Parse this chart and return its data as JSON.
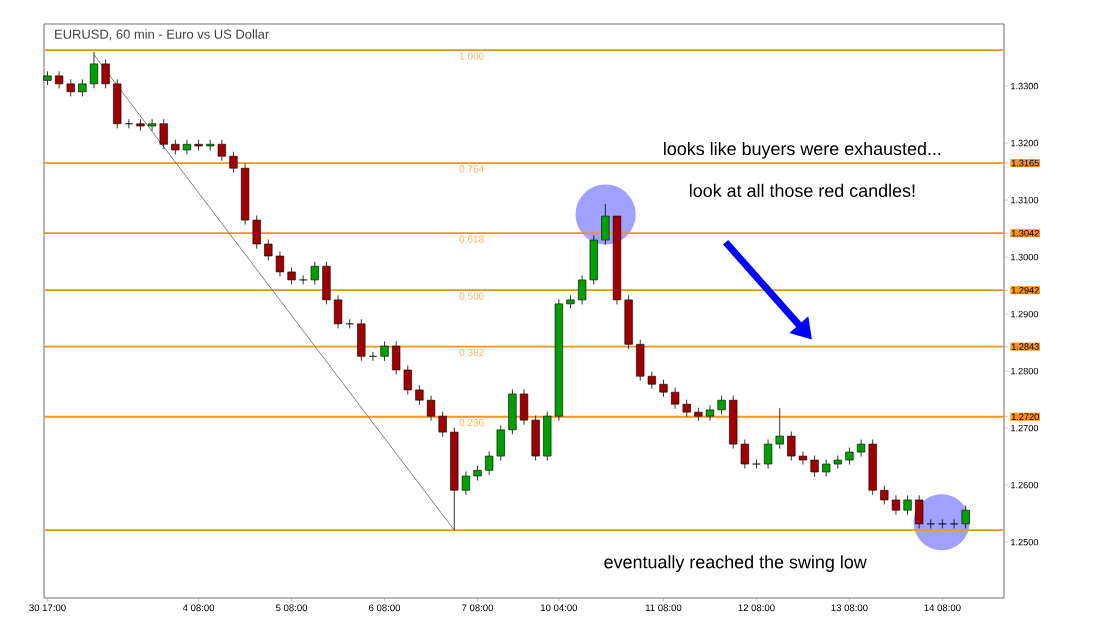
{
  "chart_data": {
    "type": "candlestick",
    "title": "EURUSD, 60 min - Euro vs US Dollar",
    "categories": [
      "30 17:00",
      null,
      null,
      null,
      null,
      null,
      null,
      null,
      null,
      null,
      null,
      null,
      null,
      "4 08:00",
      null,
      null,
      null,
      null,
      null,
      null,
      null,
      "5 08:00",
      null,
      null,
      null,
      null,
      null,
      null,
      null,
      "6 08:00",
      null,
      null,
      null,
      null,
      null,
      null,
      null,
      "7 08:00",
      null,
      null,
      null,
      null,
      null,
      null,
      "10 04:00",
      null,
      null,
      null,
      null,
      null,
      null,
      null,
      null,
      "11 08:00",
      null,
      null,
      null,
      null,
      null,
      null,
      null,
      "12 08:00",
      null,
      null,
      null,
      null,
      null,
      null,
      null,
      "13 08:00",
      null,
      null,
      null,
      null,
      null,
      null,
      null,
      "14 08:00",
      null,
      null
    ],
    "ohlc": [
      [
        1.331,
        1.3326,
        1.3302,
        1.3318
      ],
      [
        1.3318,
        1.3326,
        1.3296,
        1.3304
      ],
      [
        1.3304,
        1.3312,
        1.3282,
        1.329
      ],
      [
        1.329,
        1.3312,
        1.3282,
        1.3304
      ],
      [
        1.3304,
        1.336,
        1.3296,
        1.3339
      ],
      [
        1.3339,
        1.3347,
        1.3296,
        1.3304
      ],
      [
        1.3304,
        1.3312,
        1.3226,
        1.3234
      ],
      [
        1.3234,
        1.3242,
        1.3226,
        1.3234
      ],
      [
        1.3234,
        1.3242,
        1.3222,
        1.323
      ],
      [
        1.323,
        1.3242,
        1.3222,
        1.3234
      ],
      [
        1.3234,
        1.3242,
        1.319,
        1.3198
      ],
      [
        1.3198,
        1.3206,
        1.318,
        1.3188
      ],
      [
        1.3188,
        1.3206,
        1.318,
        1.3198
      ],
      [
        1.3198,
        1.3206,
        1.3187,
        1.3195
      ],
      [
        1.3195,
        1.3206,
        1.3187,
        1.3198
      ],
      [
        1.3198,
        1.3206,
        1.3169,
        1.3177
      ],
      [
        1.3177,
        1.3185,
        1.3148,
        1.3156
      ],
      [
        1.3156,
        1.3164,
        1.3057,
        1.3065
      ],
      [
        1.3065,
        1.3073,
        1.3015,
        1.3023
      ],
      [
        1.3023,
        1.3031,
        1.2994,
        1.3002
      ],
      [
        1.3002,
        1.301,
        1.2966,
        1.2974
      ],
      [
        1.2974,
        1.2982,
        1.2952,
        1.296
      ],
      [
        1.296,
        1.2968,
        1.2952,
        1.296
      ],
      [
        1.296,
        1.2992,
        1.2952,
        1.2984
      ],
      [
        1.2984,
        1.2992,
        1.2917,
        1.2925
      ],
      [
        1.2925,
        1.2933,
        1.2875,
        1.2883
      ],
      [
        1.2883,
        1.2891,
        1.2875,
        1.2883
      ],
      [
        1.2883,
        1.2891,
        1.2818,
        1.2826
      ],
      [
        1.2826,
        1.2834,
        1.2818,
        1.2826
      ],
      [
        1.2826,
        1.2852,
        1.2818,
        1.2844
      ],
      [
        1.2844,
        1.2852,
        1.2794,
        1.2802
      ],
      [
        1.2802,
        1.281,
        1.2759,
        1.2767
      ],
      [
        1.2767,
        1.2775,
        1.2741,
        1.2749
      ],
      [
        1.2749,
        1.2757,
        1.2713,
        1.2721
      ],
      [
        1.2721,
        1.2729,
        1.2685,
        1.2693
      ],
      [
        1.2693,
        1.2701,
        1.2521,
        1.2591
      ],
      [
        1.2591,
        1.2624,
        1.2583,
        1.2616
      ],
      [
        1.2616,
        1.2634,
        1.2608,
        1.2626
      ],
      [
        1.2626,
        1.2659,
        1.2618,
        1.2651
      ],
      [
        1.2651,
        1.2705,
        1.2643,
        1.2697
      ],
      [
        1.2697,
        1.2768,
        1.2689,
        1.276
      ],
      [
        1.276,
        1.2768,
        1.2706,
        1.2714
      ],
      [
        1.2714,
        1.2722,
        1.2643,
        1.2651
      ],
      [
        1.2651,
        1.2729,
        1.2643,
        1.2721
      ],
      [
        1.2721,
        1.2926,
        1.2713,
        1.2918
      ],
      [
        1.2918,
        1.2933,
        1.291,
        1.2925
      ],
      [
        1.2925,
        1.2968,
        1.2917,
        1.296
      ],
      [
        1.296,
        1.3038,
        1.2952,
        1.303
      ],
      [
        1.303,
        1.3093,
        1.3022,
        1.3072
      ],
      [
        1.3072,
        1.3072,
        1.2917,
        1.2925
      ],
      [
        1.2925,
        1.2933,
        1.2839,
        1.2847
      ],
      [
        1.2847,
        1.2855,
        1.2783,
        1.2791
      ],
      [
        1.2791,
        1.2799,
        1.2769,
        1.2777
      ],
      [
        1.2777,
        1.2785,
        1.2755,
        1.2763
      ],
      [
        1.2763,
        1.2771,
        1.2734,
        1.2742
      ],
      [
        1.2742,
        1.275,
        1.272,
        1.2728
      ],
      [
        1.2728,
        1.2736,
        1.2713,
        1.2721
      ],
      [
        1.2721,
        1.274,
        1.2713,
        1.2732
      ],
      [
        1.2732,
        1.2757,
        1.2724,
        1.2749
      ],
      [
        1.2749,
        1.2757,
        1.2664,
        1.2672
      ],
      [
        1.2672,
        1.268,
        1.2629,
        1.2637
      ],
      [
        1.2637,
        1.2645,
        1.2629,
        1.2637
      ],
      [
        1.2637,
        1.268,
        1.2629,
        1.2672
      ],
      [
        1.2672,
        1.2735,
        1.2664,
        1.2686
      ],
      [
        1.2686,
        1.2694,
        1.2643,
        1.2651
      ],
      [
        1.2651,
        1.2659,
        1.2636,
        1.2644
      ],
      [
        1.2644,
        1.2652,
        1.2615,
        1.2623
      ],
      [
        1.2623,
        1.2645,
        1.2615,
        1.2637
      ],
      [
        1.2637,
        1.2652,
        1.2629,
        1.2644
      ],
      [
        1.2644,
        1.2666,
        1.2636,
        1.2658
      ],
      [
        1.2658,
        1.268,
        1.265,
        1.2672
      ],
      [
        1.2672,
        1.268,
        1.2583,
        1.2591
      ],
      [
        1.2591,
        1.2599,
        1.2566,
        1.2574
      ],
      [
        1.2574,
        1.2582,
        1.2548,
        1.2556
      ],
      [
        1.2556,
        1.2582,
        1.2548,
        1.2574
      ],
      [
        1.2574,
        1.2582,
        1.2524,
        1.2532
      ],
      [
        1.2532,
        1.254,
        1.2524,
        1.2532
      ],
      [
        1.2532,
        1.254,
        1.2524,
        1.2532
      ],
      [
        1.2532,
        1.254,
        1.2524,
        1.2532
      ],
      [
        1.2532,
        1.2564,
        1.2524,
        1.2556
      ]
    ],
    "series": [
      {
        "type": "line",
        "color": "#808080",
        "values": [
          null,
          null,
          null,
          null,
          1.3355,
          null,
          null,
          null,
          null,
          null,
          null,
          null,
          null,
          null,
          null,
          null,
          null,
          null,
          null,
          null,
          null,
          null,
          null,
          null,
          null,
          null,
          null,
          null,
          null,
          null,
          null,
          null,
          null,
          null,
          null,
          1.2521,
          null,
          null,
          null,
          null,
          null,
          null,
          null,
          null,
          null,
          null,
          null,
          null,
          null,
          null,
          null,
          null,
          null,
          null,
          null,
          null,
          null,
          null,
          null,
          null,
          null,
          null,
          null,
          null,
          null,
          null,
          null,
          null,
          null,
          null,
          null,
          null,
          null,
          null,
          null,
          null,
          null,
          null,
          null,
          null
        ]
      }
    ],
    "ylim": [
      1.2402,
      1.3409
    ],
    "yticks": [
      {
        "value": 1.25,
        "label": "1.2500"
      },
      {
        "value": 1.26,
        "label": "1.2600"
      },
      {
        "value": 1.27,
        "label": "1.2700"
      },
      {
        "value": 1.28,
        "label": "1.2800"
      },
      {
        "value": 1.29,
        "label": "1.2900"
      },
      {
        "value": 1.3,
        "label": "1.3000"
      },
      {
        "value": 1.31,
        "label": "1.3100"
      },
      {
        "value": 1.32,
        "label": "1.3200"
      },
      {
        "value": 1.33,
        "label": "1.3300"
      },
      {
        "value": 1.272,
        "label": "1.2720"
      },
      1.2843,
      1.2942,
      1.3042,
      1.3165
    ],
    "ref_lines": [
      {
        "axis": "y",
        "value": 1.3363,
        "color": "#f7931e"
      },
      {
        "axis": "y",
        "value": 1.3165,
        "color": "#f7931e"
      },
      {
        "axis": "y",
        "value": 1.3042,
        "color": "#f7931e"
      },
      {
        "axis": "y",
        "value": 1.2942,
        "color": "#f7931e"
      },
      {
        "axis": "y",
        "value": 1.2843,
        "color": "#f7931e"
      },
      {
        "axis": "y",
        "value": 1.272,
        "color": "#f7931e"
      },
      {
        "axis": "y",
        "value": 1.2521,
        "color": "#f7931e"
      }
    ],
    "annotations": [
      "looks like buyers were exhausted...",
      "look at all those red candles!",
      "eventually reached the swing low",
      {
        "text": "1.000",
        "y": 1.3363
      },
      {
        "text": "0.764",
        "y": 1.3165
      },
      {
        "text": "0.618",
        "y": 1.3042
      },
      {
        "text": "0.500",
        "y": 1.2942
      },
      {
        "text": "0.382",
        "y": 1.2843
      },
      {
        "text": "0.236",
        "y": 1.272
      }
    ],
    "grid": false
  }
}
